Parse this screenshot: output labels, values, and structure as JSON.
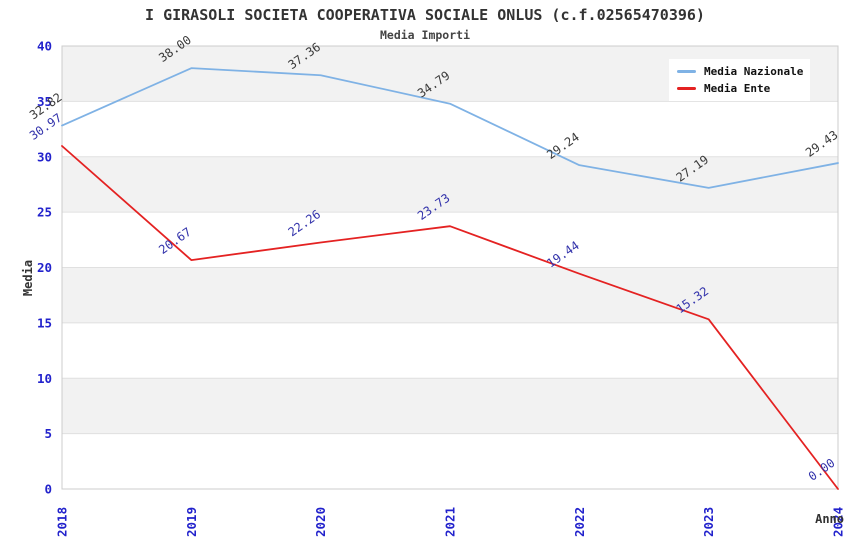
{
  "title": "I GIRASOLI SOCIETA COOPERATIVA SOCIALE ONLUS (c.f.02565470396)",
  "subtitle": "Media Importi",
  "colors": {
    "band_gray": "#f2f2f2",
    "band_white": "#ffffff",
    "grid_line": "#e0e0e0",
    "plot_border": "#cccccc",
    "tick_label": "#2222cc"
  },
  "chart_data": {
    "type": "line",
    "title": "I GIRASOLI SOCIETA COOPERATIVA SOCIALE ONLUS (c.f.02565470396)",
    "subtitle": "Media Importi",
    "xlabel": "Anno",
    "ylabel": "Media",
    "x": [
      2018,
      2019,
      2020,
      2021,
      2022,
      2023,
      2024
    ],
    "series": [
      {
        "name": "Media Nazionale",
        "color": "#7fb2e5",
        "label_color": "#3a3a3a",
        "values": [
          32.82,
          38.0,
          37.36,
          34.79,
          29.24,
          27.19,
          29.43
        ]
      },
      {
        "name": "Media Ente",
        "color": "#e42222",
        "label_color": "#3333ab",
        "values": [
          30.97,
          20.67,
          22.26,
          23.73,
          19.44,
          15.32,
          0.0
        ]
      }
    ],
    "ylim": [
      0,
      40
    ],
    "yticks": [
      0,
      5,
      10,
      15,
      20,
      25,
      30,
      35,
      40
    ],
    "grid": "horizontal-bands",
    "legend_position": "top-right"
  }
}
